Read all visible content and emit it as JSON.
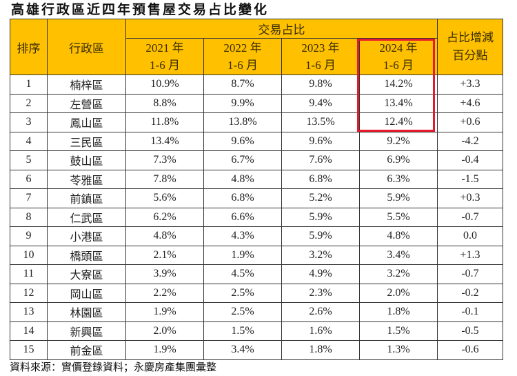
{
  "title": "高雄行政區近四年預售屋交易占比變化",
  "header": {
    "rank": "排序",
    "district": "行政區",
    "share_group": "交易占比",
    "change": [
      "占比增減",
      "百分點"
    ],
    "years": [
      {
        "year": "2021 年",
        "period": "1-6 月"
      },
      {
        "year": "2022 年",
        "period": "1-6 月"
      },
      {
        "year": "2023 年",
        "period": "1-6 月"
      },
      {
        "year": "2024 年",
        "period": "1-6 月"
      }
    ]
  },
  "rows": [
    {
      "rank": "1",
      "district": "楠梓區",
      "y2021": "10.9%",
      "y2022": "8.7%",
      "y2023": "9.8%",
      "y2024": "14.2%",
      "change": "+3.3"
    },
    {
      "rank": "2",
      "district": "左營區",
      "y2021": "8.8%",
      "y2022": "9.9%",
      "y2023": "9.4%",
      "y2024": "13.4%",
      "change": "+4.6"
    },
    {
      "rank": "3",
      "district": "鳳山區",
      "y2021": "11.8%",
      "y2022": "13.8%",
      "y2023": "13.5%",
      "y2024": "12.4%",
      "change": "+0.6"
    },
    {
      "rank": "4",
      "district": "三民區",
      "y2021": "13.4%",
      "y2022": "9.6%",
      "y2023": "9.6%",
      "y2024": "9.2%",
      "change": "-4.2"
    },
    {
      "rank": "5",
      "district": "鼓山區",
      "y2021": "7.3%",
      "y2022": "6.7%",
      "y2023": "7.6%",
      "y2024": "6.9%",
      "change": "-0.4"
    },
    {
      "rank": "6",
      "district": "苓雅區",
      "y2021": "7.8%",
      "y2022": "4.8%",
      "y2023": "6.8%",
      "y2024": "6.3%",
      "change": "-1.5"
    },
    {
      "rank": "7",
      "district": "前鎮區",
      "y2021": "5.6%",
      "y2022": "6.8%",
      "y2023": "5.2%",
      "y2024": "5.9%",
      "change": "+0.3"
    },
    {
      "rank": "8",
      "district": "仁武區",
      "y2021": "6.2%",
      "y2022": "6.6%",
      "y2023": "5.9%",
      "y2024": "5.5%",
      "change": "-0.7"
    },
    {
      "rank": "9",
      "district": "小港區",
      "y2021": "4.8%",
      "y2022": "4.3%",
      "y2023": "5.9%",
      "y2024": "4.8%",
      "change": "0.0"
    },
    {
      "rank": "10",
      "district": "橋頭區",
      "y2021": "2.1%",
      "y2022": "1.9%",
      "y2023": "3.2%",
      "y2024": "3.4%",
      "change": "+1.3"
    },
    {
      "rank": "11",
      "district": "大寮區",
      "y2021": "3.9%",
      "y2022": "4.5%",
      "y2023": "4.9%",
      "y2024": "3.2%",
      "change": "-0.7"
    },
    {
      "rank": "12",
      "district": "岡山區",
      "y2021": "2.2%",
      "y2022": "2.5%",
      "y2023": "2.3%",
      "y2024": "2.0%",
      "change": "-0.2"
    },
    {
      "rank": "13",
      "district": "林園區",
      "y2021": "1.9%",
      "y2022": "2.5%",
      "y2023": "2.6%",
      "y2024": "1.8%",
      "change": "-0.1"
    },
    {
      "rank": "14",
      "district": "新興區",
      "y2021": "2.0%",
      "y2022": "1.5%",
      "y2023": "1.6%",
      "y2024": "1.5%",
      "change": "-0.5"
    },
    {
      "rank": "15",
      "district": "前金區",
      "y2021": "1.9%",
      "y2022": "3.4%",
      "y2023": "1.8%",
      "y2024": "1.3%",
      "change": "-0.6"
    }
  ],
  "source": "資料來源：實價登錄資料；永慶房產集團彙整",
  "colors": {
    "header_bg": "#FFC000",
    "highlight_border": "#E8192C",
    "grid_line": "#333333"
  }
}
